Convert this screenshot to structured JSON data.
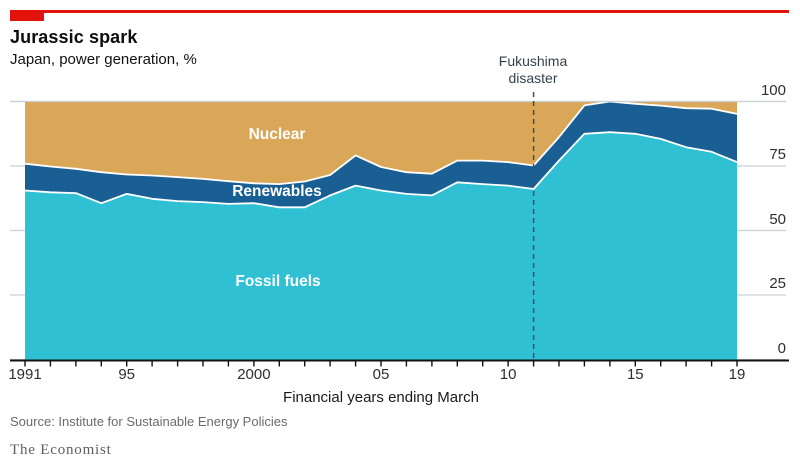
{
  "header": {
    "title": "Jurassic spark",
    "subtitle": "Japan, power generation, %"
  },
  "annotation": {
    "line1": "Fukushima",
    "line2": "disaster"
  },
  "footer": {
    "source": "Source: Institute for Sustainable Energy Policies",
    "brand": "The Economist"
  },
  "colors": {
    "accent_red": "#E3120B",
    "fossil_fuels": "#2fc0d3",
    "renewables": "#1a5f94",
    "nuclear": "#d9a757",
    "gridline": "#c9d1d6",
    "axis": "#121212",
    "dashed_line": "#3f4f58",
    "boundary_white": "#ffffff"
  },
  "chart_data": {
    "type": "area",
    "stacked": true,
    "title": "Jurassic spark",
    "subtitle": "Japan, power generation, %",
    "xlabel": "Financial years ending March",
    "ylabel": "%",
    "ylim": [
      0,
      100
    ],
    "yticks": [
      0,
      25,
      50,
      75,
      100
    ],
    "grid": "horizontal",
    "legend_position": "inline-white-labels",
    "years": [
      1991,
      1992,
      1993,
      1994,
      1995,
      1996,
      1997,
      1998,
      1999,
      2000,
      2001,
      2002,
      2003,
      2004,
      2005,
      2006,
      2007,
      2008,
      2009,
      2010,
      2011,
      2012,
      2013,
      2014,
      2015,
      2016,
      2017,
      2018,
      2019
    ],
    "xticks": [
      {
        "i": 0,
        "label": "1991"
      },
      {
        "i": 4,
        "label": "95"
      },
      {
        "i": 9,
        "label": "2000"
      },
      {
        "i": 14,
        "label": "05"
      },
      {
        "i": 19,
        "label": "10"
      },
      {
        "i": 24,
        "label": "15"
      },
      {
        "i": 28,
        "label": "19"
      }
    ],
    "series": [
      {
        "name": "Fossil fuels",
        "color": "#2fc0d3",
        "values": [
          65.5,
          64.8,
          64.5,
          60.6,
          64.2,
          62.3,
          61.4,
          61.0,
          60.3,
          60.6,
          59.0,
          59.0,
          63.6,
          67.4,
          65.5,
          64.2,
          63.6,
          68.7,
          68.0,
          67.4,
          66.1,
          77.1,
          87.5,
          88.1,
          87.5,
          85.5,
          82.3,
          80.5,
          76.5
        ]
      },
      {
        "name": "Renewables",
        "color": "#1a5f94",
        "values": [
          10.4,
          10.0,
          9.4,
          12.0,
          7.5,
          9.0,
          9.3,
          9.0,
          8.8,
          7.7,
          9.0,
          10.0,
          7.9,
          11.7,
          9.1,
          8.4,
          8.4,
          8.4,
          9.1,
          9.1,
          9.1,
          9.1,
          11.0,
          11.9,
          11.6,
          12.9,
          15.1,
          16.7,
          18.7
        ]
      },
      {
        "name": "Nuclear",
        "color": "#d9a757",
        "values": [
          24.1,
          25.2,
          26.1,
          27.4,
          28.3,
          28.7,
          29.3,
          30.0,
          30.9,
          31.7,
          32.0,
          31.0,
          28.5,
          20.9,
          25.4,
          27.4,
          28.0,
          22.9,
          22.9,
          23.5,
          24.8,
          13.8,
          1.5,
          0.0,
          0.9,
          1.6,
          2.6,
          2.8,
          4.8
        ]
      }
    ],
    "event_line": {
      "year": 2011,
      "label": "Fukushima disaster"
    }
  }
}
